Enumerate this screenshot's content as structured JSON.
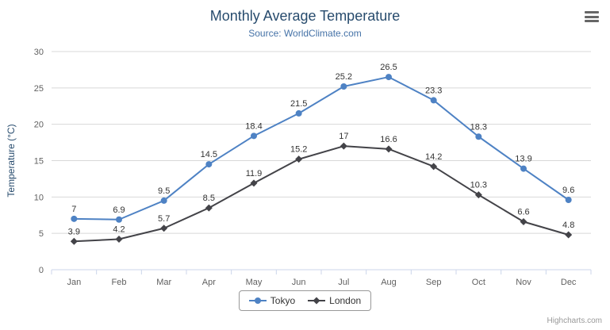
{
  "chart": {
    "title": "Monthly Average Temperature",
    "subtitle": "Source: WorldClimate.com",
    "credit": "Highcharts.com",
    "export_menu_icon": "hamburger-icon"
  },
  "chart_data": {
    "type": "line",
    "title": "Monthly Average Temperature",
    "subtitle": "Source: WorldClimate.com",
    "categories": [
      "Jan",
      "Feb",
      "Mar",
      "Apr",
      "May",
      "Jun",
      "Jul",
      "Aug",
      "Sep",
      "Oct",
      "Nov",
      "Dec"
    ],
    "series": [
      {
        "name": "Tokyo",
        "color": "#4e82c4",
        "marker": "circle",
        "values": [
          7,
          6.9,
          9.5,
          14.5,
          18.4,
          21.5,
          25.2,
          26.5,
          23.3,
          18.3,
          13.9,
          9.6
        ]
      },
      {
        "name": "London",
        "color": "#434348",
        "marker": "diamond",
        "values": [
          3.9,
          4.2,
          5.7,
          8.5,
          11.9,
          15.2,
          17,
          16.6,
          14.2,
          10.3,
          6.6,
          4.8
        ]
      }
    ],
    "xlabel": "",
    "ylabel": "Temperature (°C)",
    "ylim": [
      0,
      30
    ],
    "ytick_step": 5,
    "grid": true,
    "legend_position": "bottom",
    "colors": {
      "gridline": "#d8d8d8",
      "axis_line": "#ccd6eb",
      "axis_label": "#606060",
      "data_label": "#333333"
    }
  }
}
